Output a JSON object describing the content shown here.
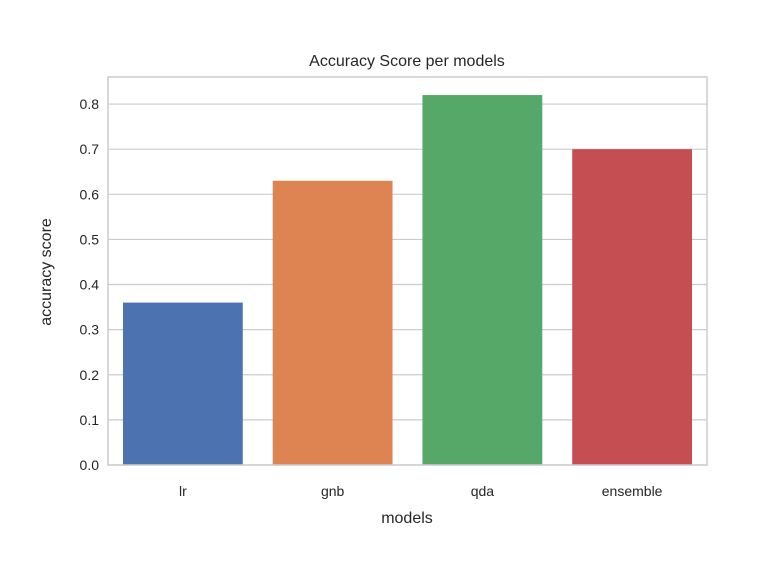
{
  "chart_data": {
    "type": "bar",
    "title": "Accuracy Score per models",
    "xlabel": "models",
    "ylabel": "accuracy score",
    "categories": [
      "lr",
      "gnb",
      "qda",
      "ensemble"
    ],
    "values": [
      0.36,
      0.63,
      0.82,
      0.7
    ],
    "colors": [
      "#4c72b0",
      "#dd8452",
      "#55a868",
      "#c44e52"
    ],
    "ylim": [
      0,
      0.86
    ],
    "yticks": [
      0.0,
      0.1,
      0.2,
      0.3,
      0.4,
      0.5,
      0.6,
      0.7,
      0.8
    ],
    "ytick_labels": [
      "0.0",
      "0.1",
      "0.2",
      "0.3",
      "0.4",
      "0.5",
      "0.6",
      "0.7",
      "0.8"
    ],
    "grid": "horizontal",
    "background": "#ffffff",
    "grid_color": "#cccccc",
    "spine_color": "#cccccc"
  }
}
